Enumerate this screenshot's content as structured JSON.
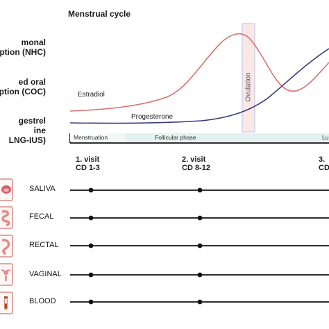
{
  "diagram": {
    "title": "Menstrual cycle",
    "groups": [
      {
        "line1": "monal",
        "line2": "eption (NHC)"
      },
      {
        "line1": "ed oral",
        "line2": "eption (COC)"
      },
      {
        "line1": "gestrel",
        "line2": "ine",
        "line3": "LNG-IUS)"
      }
    ],
    "curves": {
      "estradiol": "Estradiol",
      "progesterone": "Progesterone",
      "ovulation": "Ovulation"
    },
    "phases": {
      "menstruation": "Menstruation",
      "follicular": "Follicular phase",
      "luteal": "Lu"
    },
    "visits": [
      {
        "line1": "1. visit",
        "line2": "CD 1-3"
      },
      {
        "line1": "2. visit",
        "line2": "CD 8-12"
      },
      {
        "line1": "3.",
        "line2": "CD"
      }
    ],
    "samples": [
      "SALIVA",
      "FECAL",
      "RECTAL",
      "VAGINAL",
      "BLOOD"
    ],
    "colors": {
      "estradiol": "#d9706e",
      "progesterone": "#3a3a7c",
      "ovulation_fill": "#fbe7e4",
      "ovulation_border": "#c5c9ef",
      "phase_bar": "#e3f2ee",
      "icon_border": "#e0a8a4"
    }
  }
}
